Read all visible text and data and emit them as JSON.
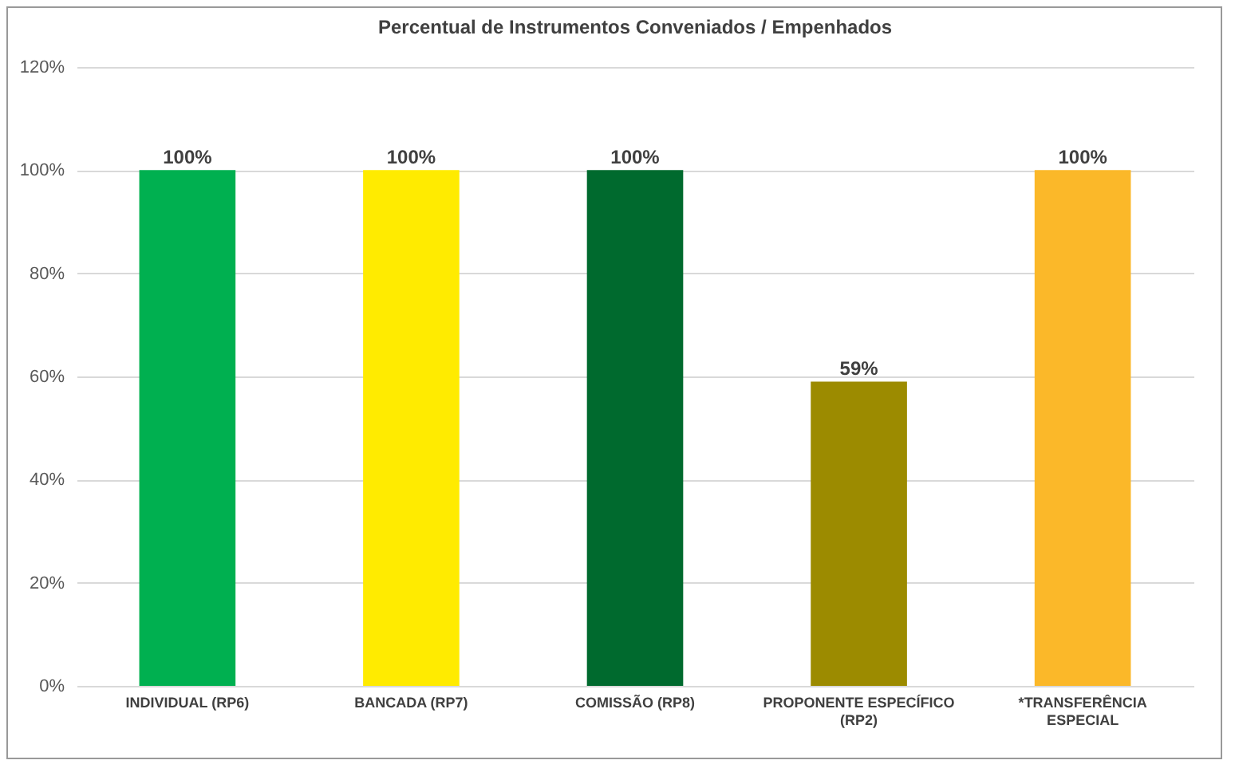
{
  "chart_data": {
    "type": "bar",
    "title": "Percentual de Instrumentos Conveniados / Empenhados",
    "categories": [
      "INDIVIDUAL (RP6)",
      "BANCADA (RP7)",
      "COMISSÃO (RP8)",
      "PROPONENTE ESPECÍFICO (RP2)",
      "*TRANSFERÊNCIA ESPECIAL"
    ],
    "values": [
      100,
      100,
      100,
      59,
      100
    ],
    "colors": [
      "#00b050",
      "#ffeb00",
      "#006a2e",
      "#9c8b00",
      "#fbb829"
    ],
    "value_labels": [
      "100%",
      "100%",
      "100%",
      "59%",
      "100%"
    ],
    "ylim": [
      0,
      120
    ],
    "yticks": [
      {
        "value": 0,
        "label": "0%"
      },
      {
        "value": 20,
        "label": "20%"
      },
      {
        "value": 40,
        "label": "40%"
      },
      {
        "value": 60,
        "label": "60%"
      },
      {
        "value": 80,
        "label": "80%"
      },
      {
        "value": 100,
        "label": "100%"
      },
      {
        "value": 120,
        "label": "120%"
      }
    ],
    "grid": "y",
    "legend": false
  }
}
